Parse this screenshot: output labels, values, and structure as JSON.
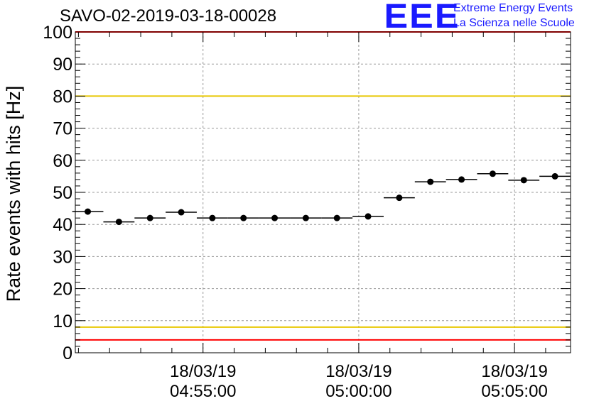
{
  "header": {
    "title": "SAVO-02-2019-03-18-00028",
    "logo_text": "EEE",
    "logo_line1": "Extreme Energy Events",
    "logo_line2": "La Scienza nelle Scuole"
  },
  "chart_data": {
    "type": "scatter",
    "title": "SAVO-02-2019-03-18-00028",
    "xlabel": "",
    "ylabel": "Rate events with hits [Hz]",
    "ylim": [
      0,
      100
    ],
    "xlim_minutes": [
      50.9,
      66.8
    ],
    "grid": true,
    "yticks": [
      0,
      10,
      20,
      30,
      40,
      50,
      60,
      70,
      80,
      90,
      100
    ],
    "xticks": [
      {
        "at": 55,
        "date": "18/03/19",
        "time": "04:55:00"
      },
      {
        "at": 60,
        "date": "18/03/19",
        "time": "05:00:00"
      },
      {
        "at": 65,
        "date": "18/03/19",
        "time": "05:05:00"
      }
    ],
    "reference_lines": [
      {
        "value": 100,
        "color": "#ff0000"
      },
      {
        "value": 80,
        "color": "#e8c800"
      },
      {
        "value": 8,
        "color": "#e8c800"
      },
      {
        "value": 4,
        "color": "#ff0000"
      }
    ],
    "bin_width_minutes": 1.0,
    "points": [
      {
        "x": 51.3,
        "y": 44.0
      },
      {
        "x": 52.3,
        "y": 40.8
      },
      {
        "x": 53.3,
        "y": 42.0
      },
      {
        "x": 54.3,
        "y": 43.8
      },
      {
        "x": 55.3,
        "y": 42.0
      },
      {
        "x": 56.3,
        "y": 42.0
      },
      {
        "x": 57.3,
        "y": 42.0
      },
      {
        "x": 58.3,
        "y": 42.0
      },
      {
        "x": 59.3,
        "y": 42.0
      },
      {
        "x": 60.3,
        "y": 42.5
      },
      {
        "x": 61.3,
        "y": 48.3
      },
      {
        "x": 62.3,
        "y": 53.3
      },
      {
        "x": 63.3,
        "y": 54.0
      },
      {
        "x": 64.3,
        "y": 55.8
      },
      {
        "x": 65.3,
        "y": 53.8
      },
      {
        "x": 66.3,
        "y": 55.0
      }
    ]
  }
}
